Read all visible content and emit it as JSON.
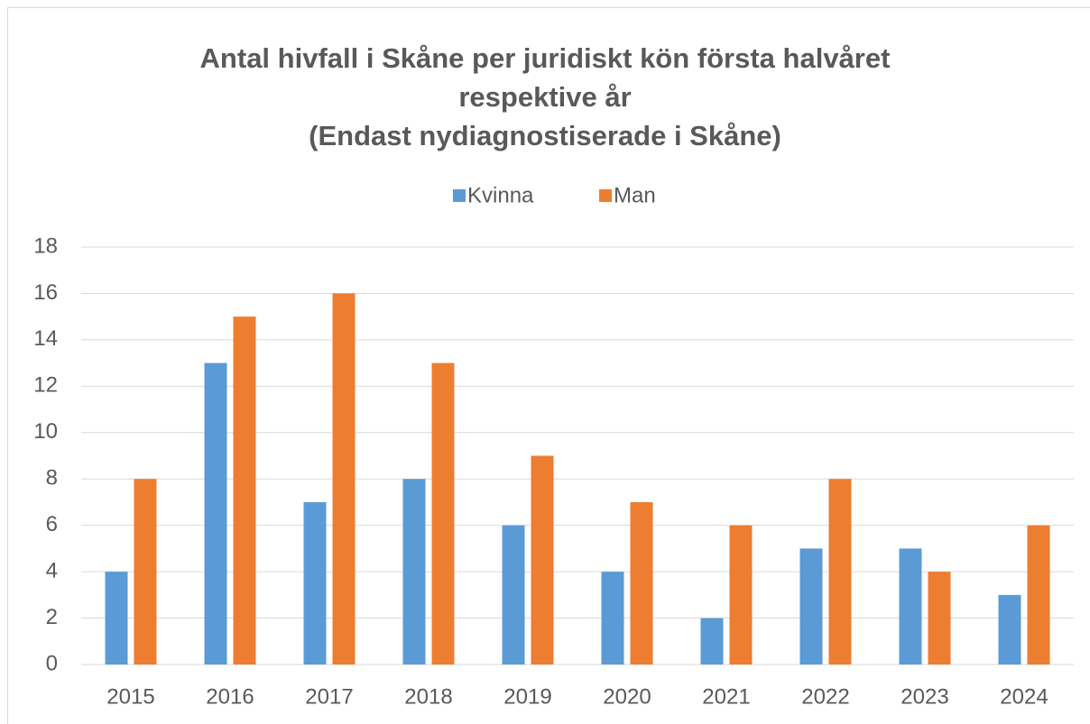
{
  "chart_data": {
    "type": "bar",
    "title": [
      "Antal hivfall i Skåne per juridiskt kön första halvåret",
      "respektive år",
      "(Endast nydiagnostiserade i Skåne)"
    ],
    "categories": [
      "2015",
      "2016",
      "2017",
      "2018",
      "2019",
      "2020",
      "2021",
      "2022",
      "2023",
      "2024"
    ],
    "series": [
      {
        "name": "Kvinna",
        "color": "#5b9bd5",
        "values": [
          4,
          13,
          7,
          8,
          6,
          4,
          2,
          5,
          5,
          3
        ]
      },
      {
        "name": "Man",
        "color": "#ed7d31",
        "values": [
          8,
          15,
          16,
          13,
          9,
          7,
          6,
          8,
          4,
          6
        ]
      }
    ],
    "ylim": [
      0,
      18
    ],
    "yticks": [
      0,
      2,
      4,
      6,
      8,
      10,
      12,
      14,
      16,
      18
    ],
    "grid": true,
    "legend": "top"
  }
}
